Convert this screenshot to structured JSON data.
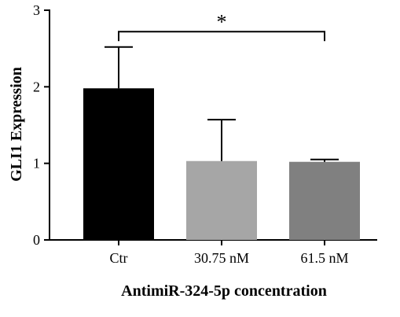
{
  "chart_data": {
    "type": "bar",
    "title": "",
    "xlabel": "AntimiR-324-5p concentration",
    "ylabel": "GLI1 Expression",
    "categories": [
      "Ctr",
      "30.75 nM",
      "61.5 nM"
    ],
    "values": [
      1.98,
      1.03,
      1.02
    ],
    "error_upper": [
      2.52,
      1.57,
      1.05
    ],
    "bar_colors": [
      "#000000",
      "#a6a6a6",
      "#808080"
    ],
    "ylim": [
      0,
      3
    ],
    "yticks": [
      "0",
      "1",
      "2",
      "3"
    ],
    "grid": false,
    "legend": "none",
    "significance": {
      "label": "*",
      "from_category": "Ctr",
      "to_category": "61.5 nM",
      "y": 2.72
    }
  }
}
